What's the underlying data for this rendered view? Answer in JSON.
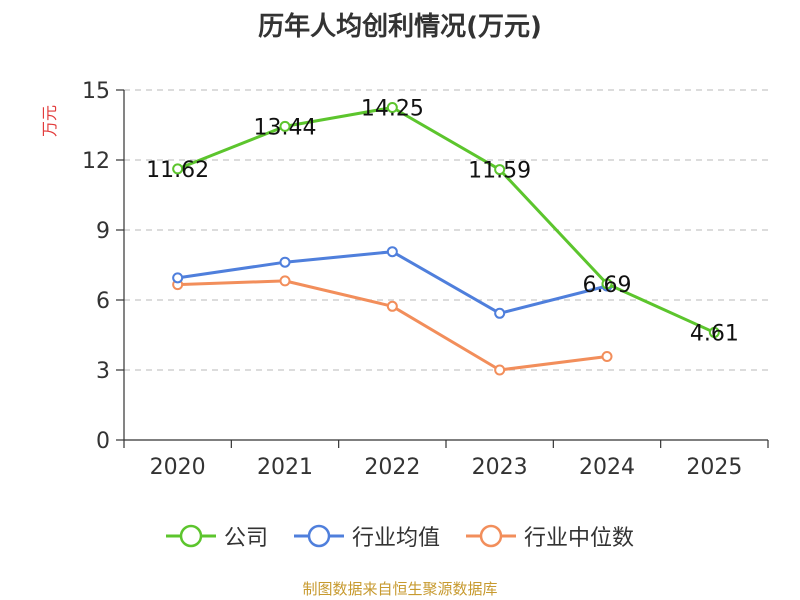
{
  "chart_data": {
    "type": "line",
    "title": "历年人均创利情况(万元)",
    "ylabel": "万元",
    "xlabel": "",
    "categories": [
      "2020",
      "2021",
      "2022",
      "2023",
      "2024",
      "2025"
    ],
    "ylim": [
      0,
      15
    ],
    "yticks": [
      0,
      3,
      6,
      9,
      12,
      15
    ],
    "grid": true,
    "legend_position": "bottom",
    "series": [
      {
        "name": "公司",
        "color": "#5cc52d",
        "values": [
          11.62,
          13.44,
          14.25,
          11.59,
          6.69,
          4.61
        ],
        "labels": [
          "11.62",
          "13.44",
          "14.25",
          "11.59",
          "6.69",
          "4.61"
        ]
      },
      {
        "name": "行业均值",
        "color": "#4f7fdc",
        "values": [
          6.95,
          7.62,
          8.07,
          5.43,
          6.6,
          null
        ]
      },
      {
        "name": "行业中位数",
        "color": "#f28e5b",
        "values": [
          6.66,
          6.82,
          5.73,
          3.0,
          3.58,
          null
        ]
      }
    ]
  },
  "source": "制图数据来自恒生聚源数据库"
}
